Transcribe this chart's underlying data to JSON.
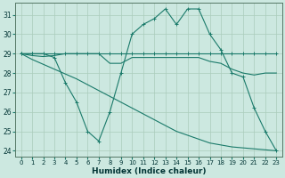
{
  "xlabel": "Humidex (Indice chaleur)",
  "bg_color": "#cce8e0",
  "line_color": "#1a7a6a",
  "grid_color": "#aaccbb",
  "xlim": [
    -0.5,
    23.5
  ],
  "ylim": [
    23.7,
    31.6
  ],
  "yticks": [
    24,
    25,
    26,
    27,
    28,
    29,
    30,
    31
  ],
  "xticks": [
    0,
    1,
    2,
    3,
    4,
    5,
    6,
    7,
    8,
    9,
    10,
    11,
    12,
    13,
    14,
    15,
    16,
    17,
    18,
    19,
    20,
    21,
    22,
    23
  ],
  "line_wavy_x": [
    0,
    1,
    2,
    3,
    4,
    5,
    6,
    7,
    8,
    9,
    10,
    11,
    12,
    13,
    14,
    15,
    16,
    17,
    18,
    19,
    20,
    21,
    22,
    23
  ],
  "line_wavy_y": [
    29.0,
    29.0,
    29.0,
    28.8,
    27.5,
    26.5,
    25.0,
    24.5,
    26.0,
    28.0,
    30.0,
    30.5,
    30.8,
    31.3,
    30.5,
    31.3,
    31.3,
    30.0,
    29.2,
    28.0,
    27.8,
    26.2,
    25.0,
    24.0
  ],
  "line_flat_x": [
    0,
    1,
    2,
    3,
    4,
    5,
    6,
    7,
    8,
    9,
    10,
    11,
    12,
    13,
    14,
    15,
    16,
    17,
    18,
    19,
    20,
    21,
    22,
    23
  ],
  "line_flat_y": [
    29.0,
    29.0,
    29.0,
    29.0,
    29.0,
    29.0,
    29.0,
    29.0,
    29.0,
    29.0,
    29.0,
    29.0,
    29.0,
    29.0,
    29.0,
    29.0,
    29.0,
    29.0,
    29.0,
    29.0,
    29.0,
    29.0,
    29.0,
    29.0
  ],
  "line_slight_x": [
    0,
    1,
    2,
    3,
    4,
    5,
    6,
    7,
    8,
    9,
    10,
    11,
    12,
    13,
    14,
    15,
    16,
    17,
    18,
    19,
    20,
    21,
    22,
    23
  ],
  "line_slight_y": [
    29.0,
    28.9,
    28.85,
    28.9,
    29.0,
    29.0,
    29.0,
    29.0,
    28.5,
    28.5,
    28.8,
    28.8,
    28.8,
    28.8,
    28.8,
    28.8,
    28.8,
    28.6,
    28.5,
    28.2,
    28.0,
    27.9,
    28.0,
    28.0
  ],
  "line_diag_x": [
    0,
    1,
    2,
    3,
    4,
    5,
    6,
    7,
    8,
    9,
    10,
    11,
    12,
    13,
    14,
    15,
    16,
    17,
    18,
    19,
    20,
    21,
    22,
    23
  ],
  "line_diag_y": [
    29.0,
    28.7,
    28.45,
    28.2,
    27.95,
    27.7,
    27.4,
    27.1,
    26.8,
    26.5,
    26.2,
    25.9,
    25.6,
    25.3,
    25.0,
    24.8,
    24.6,
    24.4,
    24.3,
    24.2,
    24.15,
    24.1,
    24.05,
    24.0
  ]
}
